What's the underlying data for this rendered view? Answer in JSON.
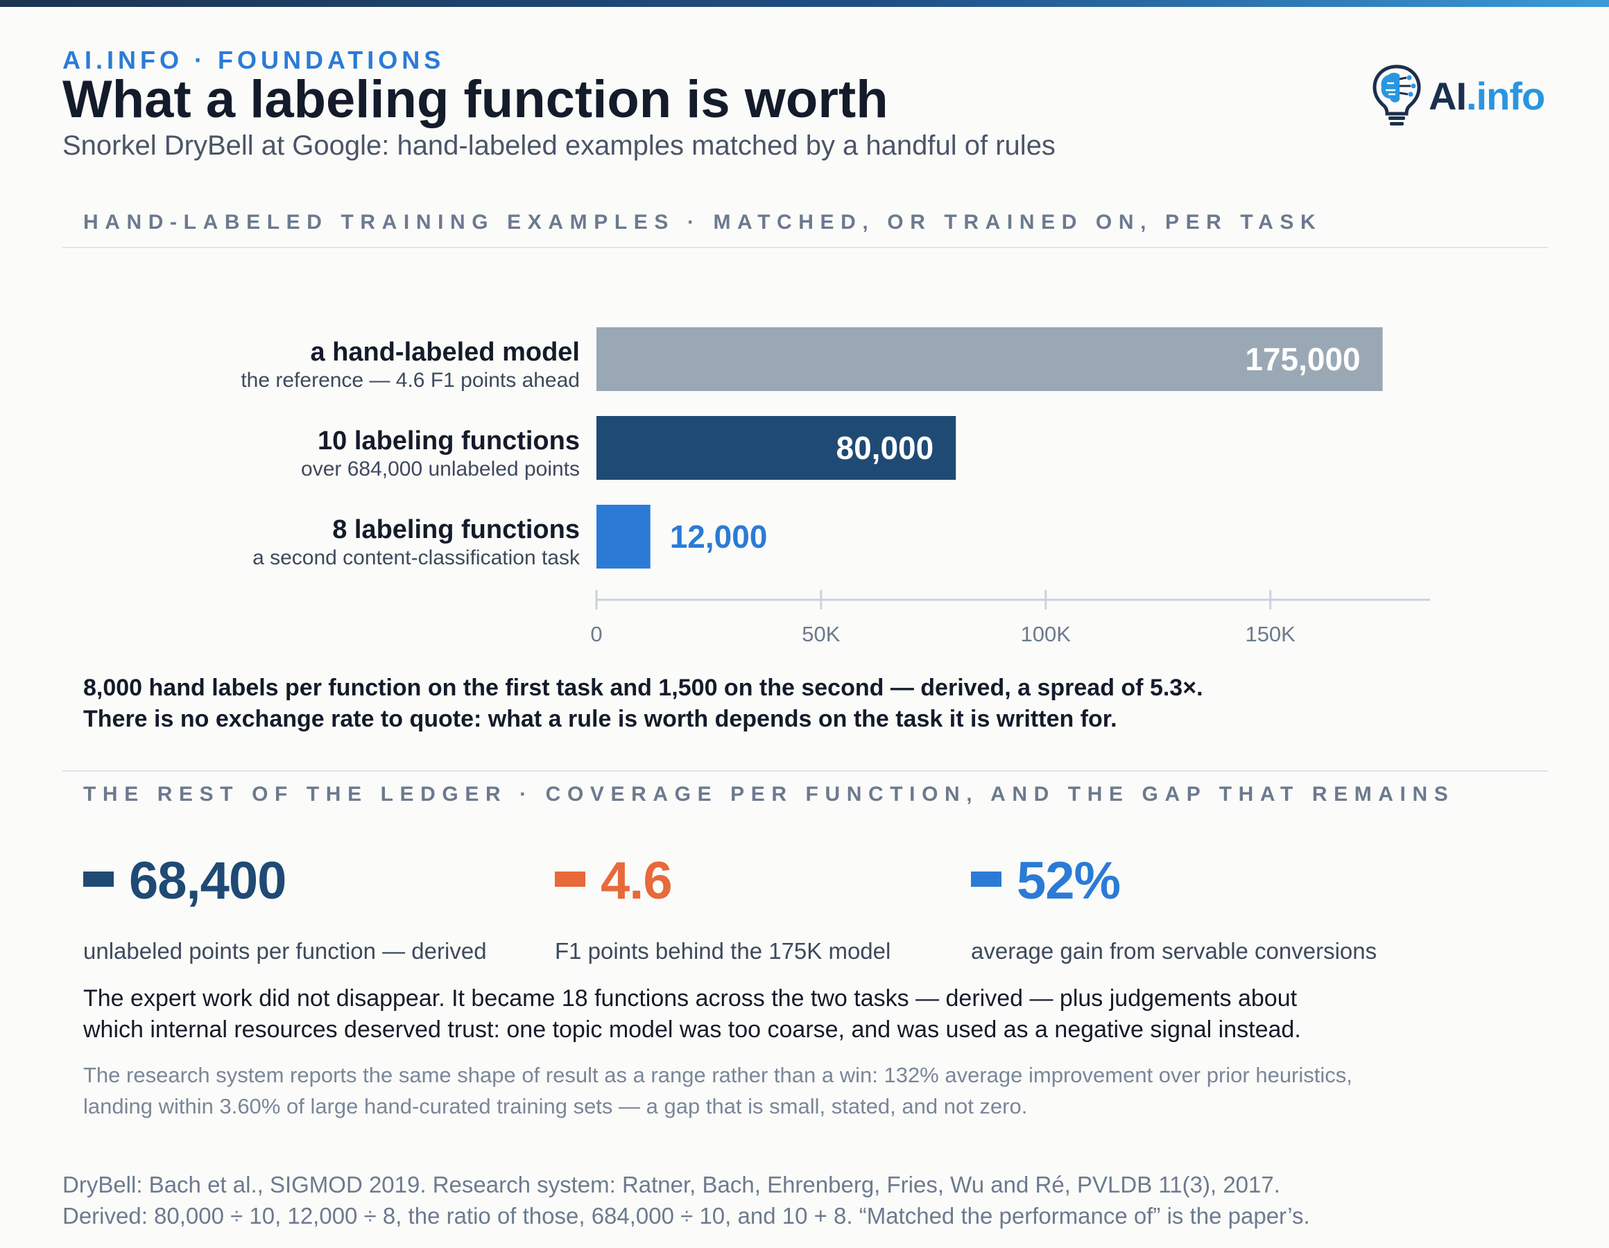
{
  "header": {
    "eyebrow": "AI.INFO · FOUNDATIONS",
    "title": "What a labeling function is worth",
    "subtitle": "Snorkel DryBell at Google: hand-labeled examples matched by a handful of rules",
    "logo": {
      "ai": "AI",
      "info": ".info",
      "icon": "lightbulb-brain-icon"
    }
  },
  "section1": {
    "heading": "HAND-LABELED TRAINING EXAMPLES · MATCHED, OR TRAINED ON, PER TASK"
  },
  "chart_data": {
    "type": "bar",
    "orientation": "horizontal",
    "categories": [
      "a hand-labeled model",
      "10 labeling functions",
      "8 labeling functions"
    ],
    "sublabels": [
      "the reference — 4.6 F1 points ahead",
      "over 684,000 unlabeled points",
      "a second content-classification task"
    ],
    "values": [
      175000,
      80000,
      12000
    ],
    "value_labels": [
      "175,000",
      "80,000",
      "12,000"
    ],
    "colors": [
      "#9aa8b6",
      "#1f4a74",
      "#2b7bd6"
    ],
    "value_label_colors": [
      "#ffffff",
      "#ffffff",
      "#2b7bd6"
    ],
    "xlim": [
      0,
      180000
    ],
    "xticks": [
      0,
      50000,
      100000,
      150000
    ],
    "xtick_labels": [
      "0",
      "50K",
      "100K",
      "150K"
    ],
    "grid": false,
    "axis_color": "#c9d3de"
  },
  "takeaway": {
    "line1": "8,000 hand labels per function on the first task and 1,500 on the second — derived, a spread of 5.3×.",
    "line2": "There is no exchange rate to quote: what a rule is worth depends on the task it is written for."
  },
  "section2": {
    "heading": "THE REST OF THE LEDGER · COVERAGE PER FUNCTION, AND THE GAP THAT REMAINS"
  },
  "stats": [
    {
      "value": "68,400",
      "label": "unlabeled points per function — derived",
      "color": "#1f4a74"
    },
    {
      "value": "4.6",
      "label": "F1 points behind the 175K model",
      "color": "#e8693a"
    },
    {
      "value": "52%",
      "label": "average gain from servable conversions",
      "color": "#2b7bd6"
    }
  ],
  "paragraph": {
    "line1": "The expert work did not disappear. It became 18 functions across the two tasks — derived — plus judgements about",
    "line2": "which internal resources deserved trust: one topic model was too coarse, and was used as a negative signal instead."
  },
  "note": {
    "line1": "The research system reports the same shape of result as a range rather than a win: 132% average improvement over prior heuristics,",
    "line2": "landing within 3.60% of large hand-curated training sets — a gap that is small, stated, and not zero."
  },
  "footer": {
    "line1": "DryBell: Bach et al., SIGMOD 2019. Research system: Ratner, Bach, Ehrenberg, Fries, Wu and Ré, PVLDB 11(3), 2017.",
    "line2": "Derived: 80,000 ÷ 10, 12,000 ÷ 8, the ratio of those, 684,000 ÷ 10, and 10 + 8. “Matched the performance of” is the paper’s."
  }
}
